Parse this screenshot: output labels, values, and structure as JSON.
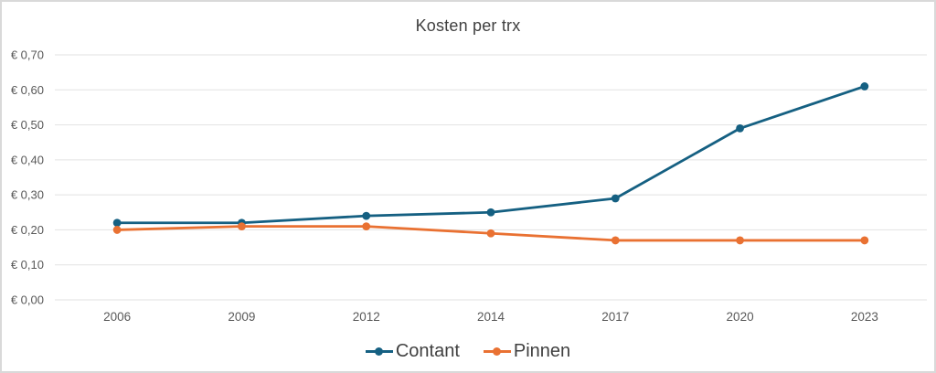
{
  "title": "Kosten per trx",
  "chart_data": {
    "type": "line",
    "title": "Kosten per trx",
    "categories": [
      "2006",
      "2009",
      "2012",
      "2014",
      "2017",
      "2020",
      "2023"
    ],
    "series": [
      {
        "name": "Contant",
        "color": "#156082",
        "values": [
          0.22,
          0.22,
          0.24,
          0.25,
          0.29,
          0.49,
          0.61
        ]
      },
      {
        "name": "Pinnen",
        "color": "#E97132",
        "values": [
          0.2,
          0.21,
          0.21,
          0.19,
          0.17,
          0.17,
          0.17
        ]
      }
    ],
    "xlabel": "",
    "ylabel": "",
    "ylim": [
      0,
      0.7
    ],
    "ytick_step": 0.1,
    "ytick_labels": [
      "€ 0,00",
      "€ 0,10",
      "€ 0,20",
      "€ 0,30",
      "€ 0,40",
      "€ 0,50",
      "€ 0,60",
      "€ 0,70"
    ],
    "currency_prefix": "€ ",
    "grid": true,
    "legend_position": "bottom"
  },
  "colors": {
    "frame_border": "#D9D9D9",
    "gridline": "#E2E2E2",
    "tick_label": "#595959",
    "title_text": "#404040",
    "legend_text": "#404040"
  }
}
